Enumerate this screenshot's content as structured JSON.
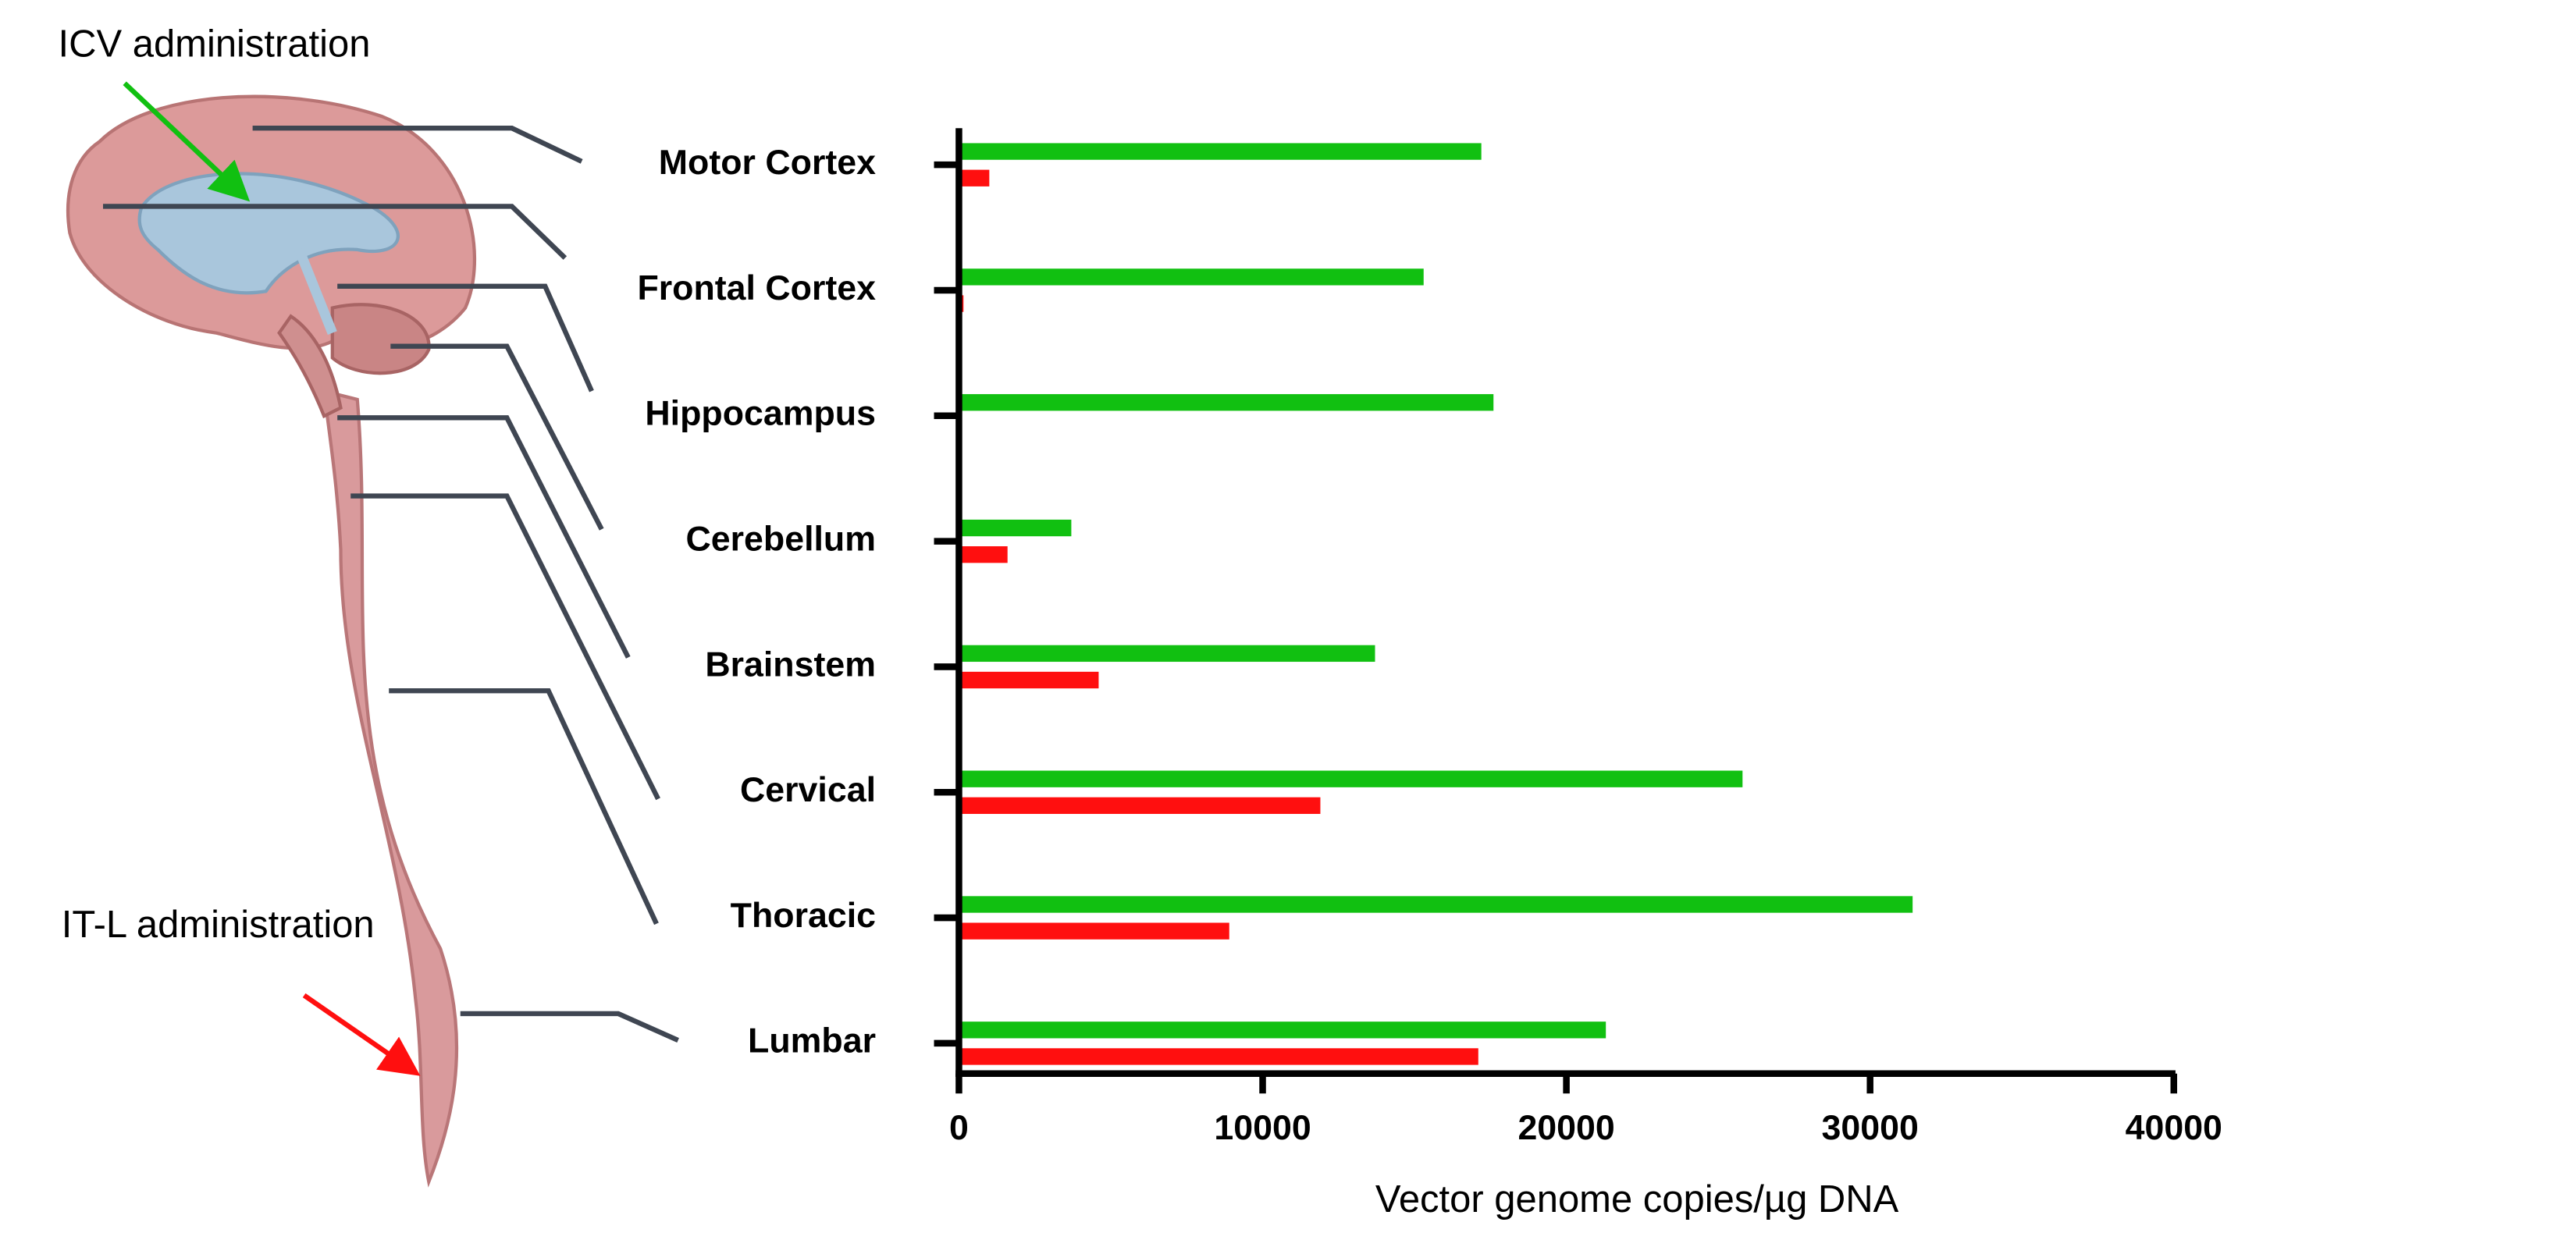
{
  "chart_data": {
    "type": "bar",
    "orientation": "horizontal",
    "x_label": "Vector genome copies/µg DNA",
    "categories": [
      "Motor Cortex",
      "Frontal Cortex",
      "Hippocampus",
      "Cerebellum",
      "Brainstem",
      "Cervical",
      "Thoracic",
      "Lumbar"
    ],
    "series": [
      {
        "name": "ICV administration",
        "color": "#11c011",
        "values": [
          17200,
          15300,
          17600,
          3700,
          13700,
          25800,
          31400,
          21300
        ]
      },
      {
        "name": "IT-L administration",
        "color": "#ff0f0f",
        "values": [
          1000,
          150,
          100,
          1600,
          4600,
          11900,
          8900,
          17100
        ]
      }
    ],
    "xlim": [
      0,
      40000
    ],
    "xticks": [
      0,
      10000,
      20000,
      30000,
      40000
    ]
  }
}
